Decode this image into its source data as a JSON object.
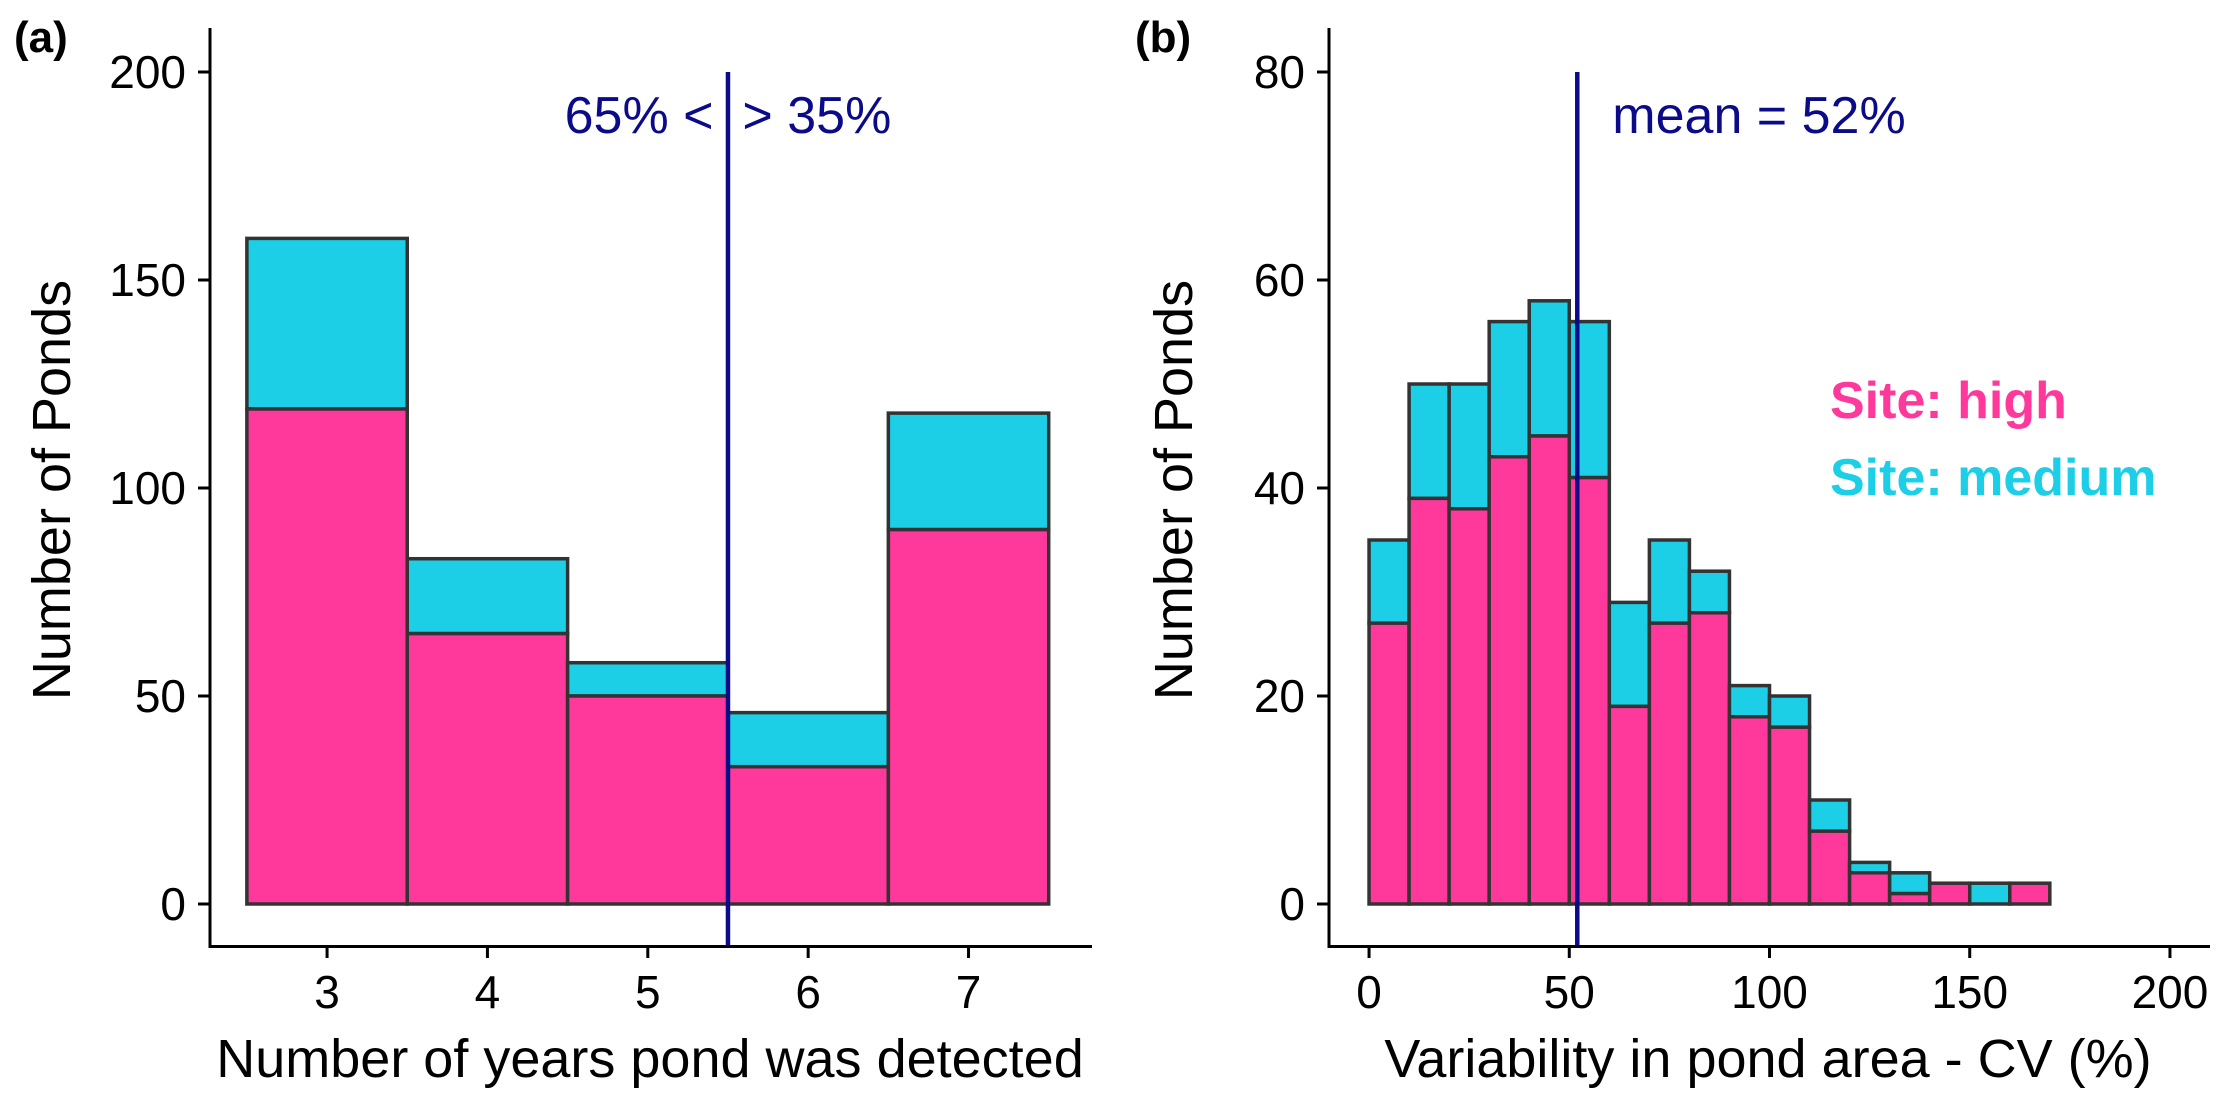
{
  "colors": {
    "high": "#ff399c",
    "medium": "#1ccee6",
    "reference_line": "#0b0b8a",
    "bar_outline": "#333333"
  },
  "chart_data": [
    {
      "panel": "(a)",
      "type": "bar",
      "stacked": true,
      "xlabel": "Number of years pond was detected",
      "ylabel": "Number of Ponds",
      "categories": [
        "3",
        "4",
        "5",
        "6",
        "7"
      ],
      "xlim": [
        2.5,
        7.5
      ],
      "ylim": [
        0,
        200
      ],
      "yticks": [
        0,
        50,
        100,
        150,
        200
      ],
      "series": [
        {
          "key": "high",
          "values": [
            119,
            65,
            50,
            33,
            90
          ]
        },
        {
          "key": "medium",
          "values": [
            41,
            18,
            8,
            13,
            28
          ]
        }
      ],
      "vline": {
        "x": 5.5,
        "label": "65% <  > 35%"
      },
      "grid": false
    },
    {
      "panel": "(b)",
      "type": "bar",
      "stacked": true,
      "histogram": true,
      "xlabel": "Variability in pond area - CV (%)",
      "ylabel": "Number of Ponds",
      "bin_width": 10,
      "bin_starts": [
        0,
        10,
        20,
        30,
        40,
        50,
        60,
        70,
        80,
        90,
        100,
        110,
        120,
        130,
        140,
        150,
        160,
        170,
        180,
        190
      ],
      "xticks": [
        0,
        50,
        100,
        150,
        200
      ],
      "ylim": [
        0,
        80
      ],
      "yticks": [
        0,
        20,
        40,
        60,
        80
      ],
      "series": [
        {
          "key": "high",
          "name": "Site: high",
          "values": [
            27,
            39,
            38,
            43,
            45,
            41,
            19,
            27,
            28,
            18,
            17,
            7,
            3,
            1,
            2,
            0,
            2,
            0,
            0,
            0
          ]
        },
        {
          "key": "medium",
          "name": "Site: medium",
          "values": [
            8,
            11,
            12,
            13,
            13,
            15,
            10,
            8,
            4,
            3,
            3,
            3,
            1,
            2,
            0,
            2,
            0,
            0,
            0,
            0
          ]
        }
      ],
      "vline": {
        "x": 52,
        "label": "mean = 52%"
      },
      "legend": {
        "position": "right"
      },
      "grid": false
    }
  ]
}
